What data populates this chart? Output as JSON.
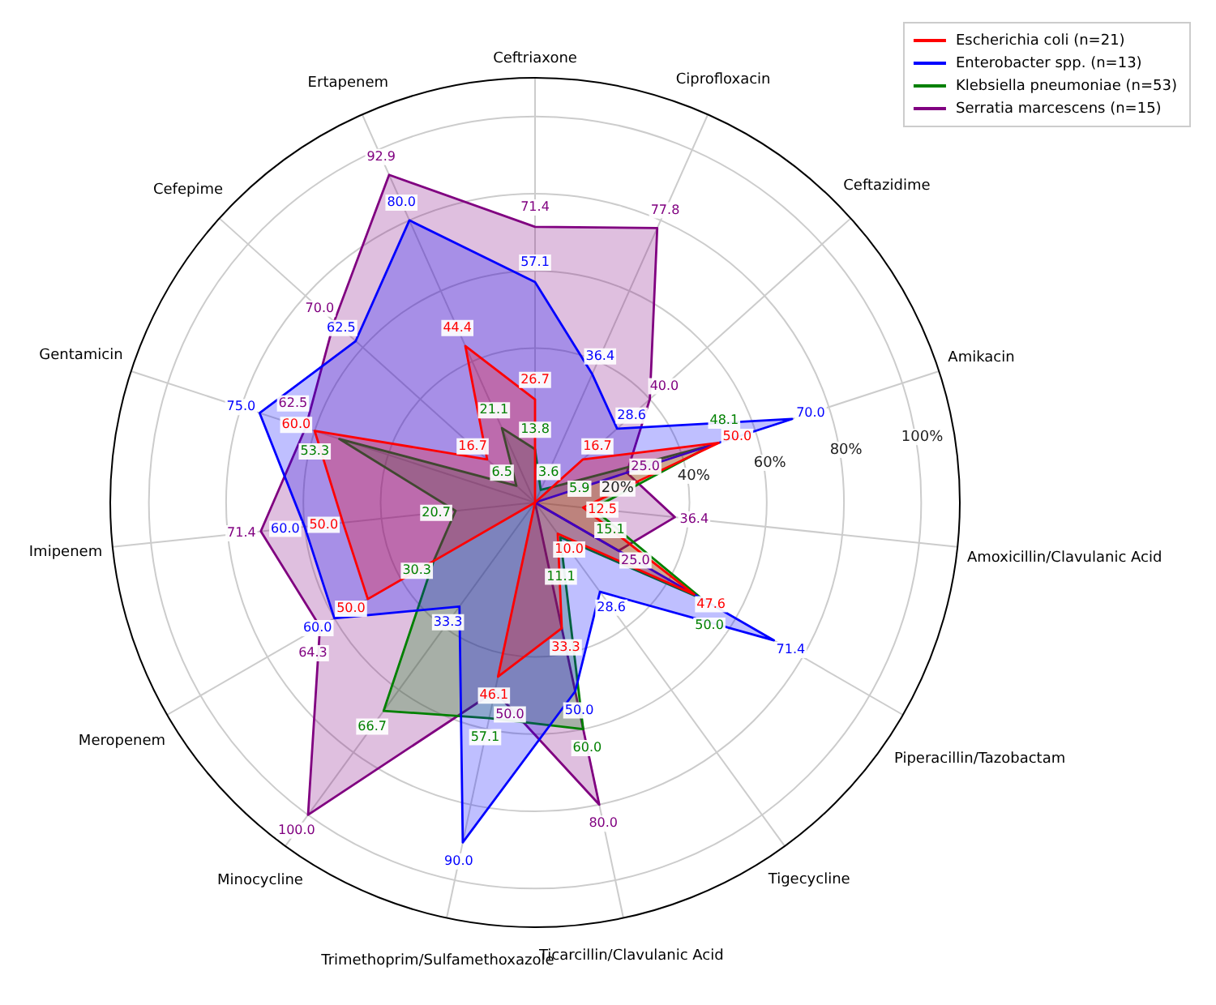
{
  "chart_data": {
    "type": "radar",
    "categories": [
      "Ceftriaxone",
      "Ciprofloxacin",
      "Ceftazidime",
      "Amikacin",
      "Amoxicillin/Clavulanic Acid",
      "Piperacillin/Tazobactam",
      "Tigecycline",
      "Ticarcillin/Clavulanic Acid",
      "Trimethoprim/Sulfamethoxazole",
      "Minocycline",
      "Meropenem",
      "Imipenem",
      "Gentamicin",
      "Cefepime",
      "Ertapenem"
    ],
    "series": [
      {
        "name": "Escherichia coli (n=21)",
        "color": "#ff0000",
        "values": [
          26.7,
          0,
          16.7,
          50.0,
          12.5,
          47.6,
          10.0,
          33.3,
          46.1,
          0,
          50.0,
          50.0,
          60.0,
          16.7,
          44.4
        ],
        "value_labels": [
          "26.7",
          null,
          "16.7",
          "50.0",
          "12.5",
          "47.6",
          "10.0",
          "33.3",
          "46.1",
          null,
          "50.0",
          "50.0",
          "60.0",
          "16.7",
          "44.4"
        ]
      },
      {
        "name": "Enterobacter spp. (n=13)",
        "color": "#0000ff",
        "values": [
          57.1,
          36.4,
          28.6,
          70.0,
          0,
          71.4,
          28.6,
          50.0,
          90.0,
          33.3,
          60.0,
          60.0,
          75.0,
          62.5,
          80.0
        ],
        "value_labels": [
          "57.1",
          "36.4",
          "28.6",
          "70.0",
          null,
          "71.4",
          "28.6",
          "50.0",
          "90.0",
          "33.3",
          "60.0",
          "60.0",
          "75.0",
          "62.5",
          "80.0"
        ]
      },
      {
        "name": "Klebsiella pneumoniae (n=53)",
        "color": "#008000",
        "values": [
          13.8,
          3.6,
          5.9,
          48.1,
          15.1,
          50.0,
          11.1,
          60.0,
          57.1,
          66.7,
          30.3,
          20.7,
          53.3,
          6.5,
          21.1
        ],
        "value_labels": [
          "13.8",
          "3.6",
          "5.9",
          "48.1",
          "15.1",
          "50.0",
          "11.1",
          "60.0",
          "57.1",
          "66.7",
          "30.3",
          "20.7",
          "53.3",
          "6.5",
          "21.1"
        ]
      },
      {
        "name": "Serratia marcescens (n=15)",
        "color": "#800080",
        "values": [
          71.4,
          77.8,
          40.0,
          25.0,
          36.4,
          25.0,
          0,
          80.0,
          50.0,
          100.0,
          64.3,
          71.4,
          62.5,
          70.0,
          92.9
        ],
        "value_labels": [
          "71.4",
          "77.8",
          "40.0",
          "25.0",
          "36.4",
          "25.0",
          null,
          "80.0",
          "50.0",
          "100.0",
          "64.3",
          "71.4",
          "62.5",
          "70.0",
          "92.9"
        ]
      }
    ],
    "ylim": [
      0,
      110
    ],
    "yticks": [
      {
        "value": 20,
        "label": "20%"
      },
      {
        "value": 40,
        "label": "40%"
      },
      {
        "value": 60,
        "label": "60%"
      },
      {
        "value": 80,
        "label": "80%"
      },
      {
        "value": 100,
        "label": "100%"
      }
    ],
    "grid": true,
    "legend": "top right",
    "marker": "none",
    "line_style": "solid"
  }
}
